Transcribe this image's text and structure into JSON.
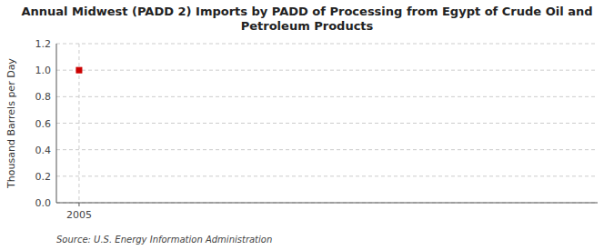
{
  "chart_data": {
    "type": "scatter",
    "title": "Annual Midwest (PADD 2) Imports by PADD of Processing from Egypt of Crude Oil and\nPetroleum Products",
    "y_label": "Thousand Barrels per Day",
    "annotations": [
      "Source: U.S. Energy Information Administration"
    ],
    "x": [
      2005
    ],
    "values": [
      1.0
    ],
    "color": "#cc0000",
    "marker": "square",
    "xlim": [
      2004.3,
      2021
    ],
    "xticks": [
      2005
    ],
    "ylim": [
      0.0,
      1.2
    ],
    "yticks": [
      {
        "value": 0.0,
        "label": "0.0"
      },
      0.2,
      0.4,
      0.6,
      0.8,
      {
        "value": 1.0,
        "label": "1.0"
      },
      1.2
    ],
    "grid": true
  }
}
